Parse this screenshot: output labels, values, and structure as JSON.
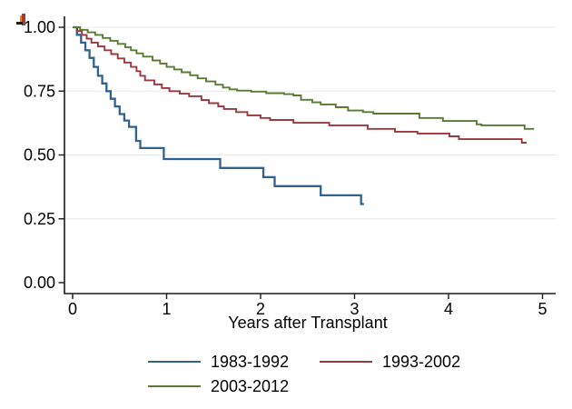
{
  "colors": {
    "background": "#ffffff",
    "axis": "#1a1a1a",
    "grid": "#e8e8e8",
    "artifact_red": "#a93a2e",
    "artifact_black": "#1c1c1c"
  },
  "chart_data": {
    "type": "line",
    "subtype": "kaplan-meier-step",
    "title": "",
    "xlabel": "Years after Transplant",
    "ylabel": "",
    "xlim": [
      0,
      5
    ],
    "ylim": [
      0,
      1
    ],
    "x_ticks": [
      0,
      1,
      2,
      3,
      4,
      5
    ],
    "y_ticks": [
      {
        "v": 0.0,
        "label": "0.00"
      },
      {
        "v": 0.25,
        "label": "0.25"
      },
      {
        "v": 0.5,
        "label": "0.50"
      },
      {
        "v": 0.75,
        "label": "0.75"
      },
      {
        "v": 1.0,
        "label": "1.00"
      }
    ],
    "grid": true,
    "legend_position": "bottom",
    "series": [
      {
        "name": "1983-1992",
        "color": "#31628f",
        "points": [
          [
            0,
            1.0
          ],
          [
            0.045,
            0.97
          ],
          [
            0.09,
            0.94
          ],
          [
            0.135,
            0.91
          ],
          [
            0.18,
            0.88
          ],
          [
            0.225,
            0.845
          ],
          [
            0.27,
            0.81
          ],
          [
            0.315,
            0.78
          ],
          [
            0.36,
            0.75
          ],
          [
            0.405,
            0.72
          ],
          [
            0.45,
            0.69
          ],
          [
            0.5,
            0.66
          ],
          [
            0.55,
            0.635
          ],
          [
            0.6,
            0.61
          ],
          [
            0.675,
            0.555
          ],
          [
            0.72,
            0.527
          ],
          [
            0.97,
            0.484
          ],
          [
            1.57,
            0.449
          ],
          [
            2.03,
            0.413
          ],
          [
            2.15,
            0.378
          ],
          [
            2.64,
            0.342
          ],
          [
            3.07,
            0.308
          ],
          [
            3.1,
            0.308
          ]
        ]
      },
      {
        "name": "1993-2002",
        "color": "#9a383e",
        "points": [
          [
            0,
            1.0
          ],
          [
            0.05,
            0.985
          ],
          [
            0.1,
            0.97
          ],
          [
            0.15,
            0.955
          ],
          [
            0.2,
            0.94
          ],
          [
            0.27,
            0.925
          ],
          [
            0.34,
            0.91
          ],
          [
            0.41,
            0.895
          ],
          [
            0.48,
            0.878
          ],
          [
            0.55,
            0.862
          ],
          [
            0.62,
            0.845
          ],
          [
            0.68,
            0.828
          ],
          [
            0.72,
            0.81
          ],
          [
            0.77,
            0.792
          ],
          [
            0.87,
            0.776
          ],
          [
            0.95,
            0.762
          ],
          [
            1.03,
            0.75
          ],
          [
            1.14,
            0.74
          ],
          [
            1.24,
            0.73
          ],
          [
            1.37,
            0.715
          ],
          [
            1.45,
            0.703
          ],
          [
            1.55,
            0.69
          ],
          [
            1.61,
            0.68
          ],
          [
            1.74,
            0.668
          ],
          [
            1.86,
            0.655
          ],
          [
            2.0,
            0.645
          ],
          [
            2.1,
            0.637
          ],
          [
            2.35,
            0.626
          ],
          [
            2.73,
            0.616
          ],
          [
            3.14,
            0.602
          ],
          [
            3.43,
            0.591
          ],
          [
            3.67,
            0.584
          ],
          [
            4.01,
            0.573
          ],
          [
            4.11,
            0.562
          ],
          [
            4.78,
            0.548
          ],
          [
            4.83,
            0.548
          ]
        ]
      },
      {
        "name": "2003-2012",
        "color": "#5a7a33",
        "points": [
          [
            0,
            1.0
          ],
          [
            0.08,
            0.99
          ],
          [
            0.16,
            0.98
          ],
          [
            0.24,
            0.97
          ],
          [
            0.32,
            0.958
          ],
          [
            0.4,
            0.947
          ],
          [
            0.48,
            0.935
          ],
          [
            0.56,
            0.922
          ],
          [
            0.62,
            0.91
          ],
          [
            0.68,
            0.898
          ],
          [
            0.75,
            0.885
          ],
          [
            0.85,
            0.87
          ],
          [
            0.93,
            0.858
          ],
          [
            1.0,
            0.845
          ],
          [
            1.08,
            0.835
          ],
          [
            1.16,
            0.824
          ],
          [
            1.25,
            0.812
          ],
          [
            1.33,
            0.8
          ],
          [
            1.42,
            0.788
          ],
          [
            1.52,
            0.775
          ],
          [
            1.6,
            0.764
          ],
          [
            1.67,
            0.757
          ],
          [
            1.75,
            0.752
          ],
          [
            1.9,
            0.748
          ],
          [
            2.06,
            0.742
          ],
          [
            2.25,
            0.738
          ],
          [
            2.35,
            0.733
          ],
          [
            2.43,
            0.716
          ],
          [
            2.55,
            0.706
          ],
          [
            2.64,
            0.698
          ],
          [
            2.8,
            0.687
          ],
          [
            2.93,
            0.674
          ],
          [
            3.09,
            0.668
          ],
          [
            3.2,
            0.662
          ],
          [
            3.69,
            0.645
          ],
          [
            3.94,
            0.633
          ],
          [
            4.3,
            0.62
          ],
          [
            4.35,
            0.616
          ],
          [
            4.81,
            0.602
          ],
          [
            4.91,
            0.602
          ]
        ]
      }
    ]
  }
}
